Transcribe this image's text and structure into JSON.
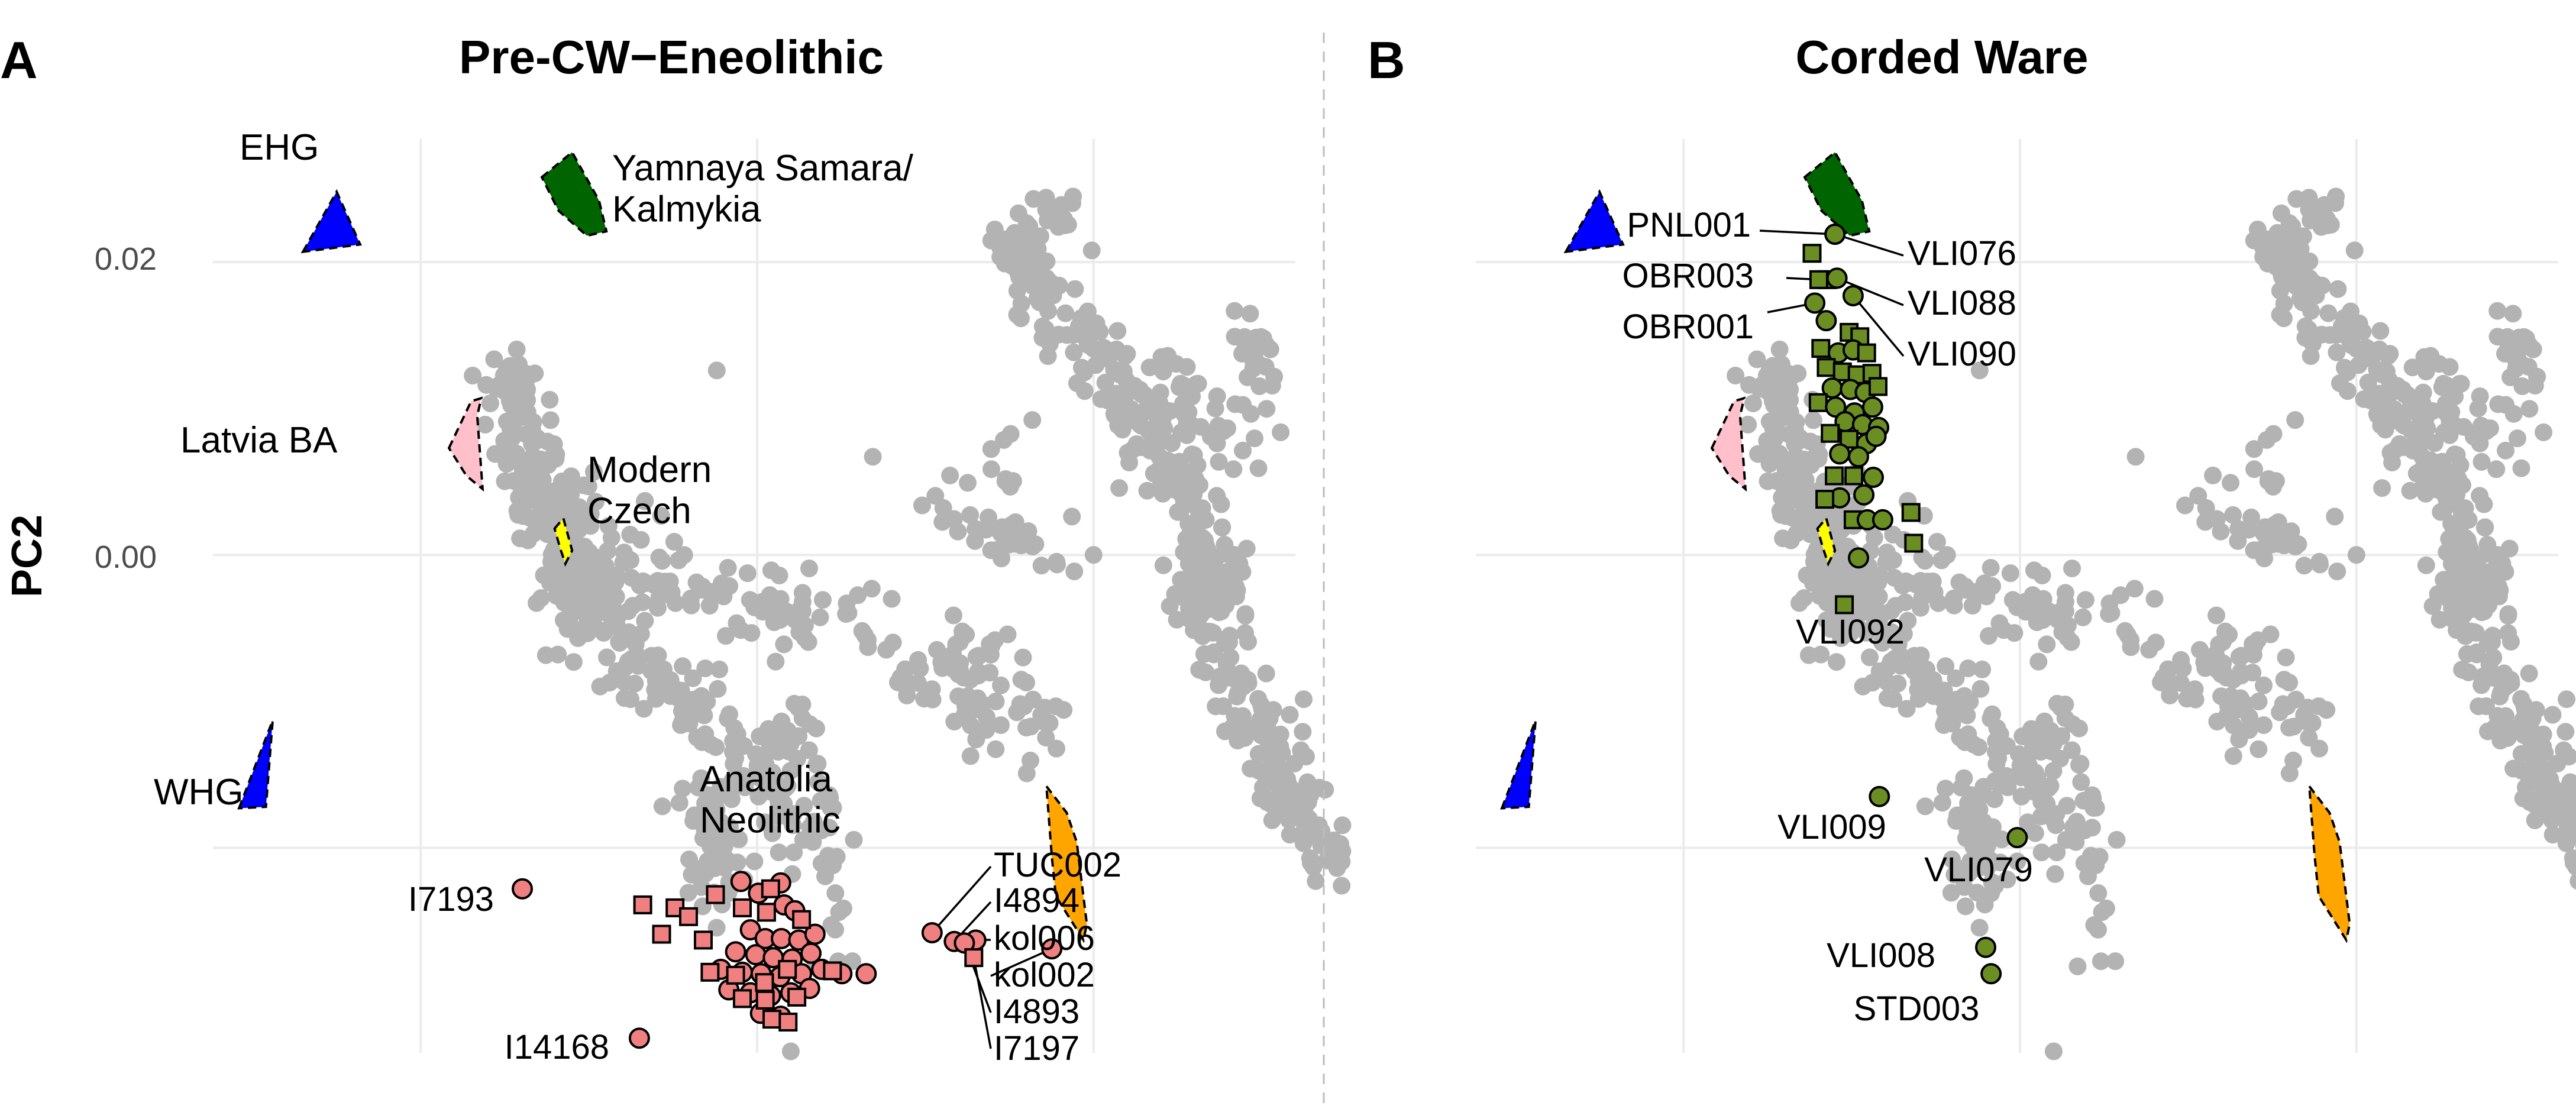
{
  "figure": {
    "ylabel": "PC2",
    "y_ticks": [
      0.02,
      0.0
    ],
    "y_tick_labels": [
      "0.02",
      "0.00"
    ]
  },
  "chart_data": [
    {
      "type": "scatter",
      "panel": "A",
      "title": "Pre-CW−Eneolithic",
      "xlabel": "",
      "ylabel": "PC2",
      "xlim": [
        -0.3,
        1.3
      ],
      "ylim": [
        -0.034,
        0.028
      ],
      "grid": true,
      "fill_colors": {
        "EHG": "#0000ff",
        "WHG": "#0000ff",
        "Yamnaya Samara/\nKalmykia": "#006400",
        "Latvia BA": "#ffc0cb",
        "Modern\nCzech": "#ffff00",
        "Anatolia\nNeolithic": "#ffa500"
      },
      "sample_color": "#f08080",
      "regions": [
        {
          "label": "EHG",
          "polygon": [
            [
              -0.175,
              0.0207
            ],
            [
              -0.125,
              0.0248
            ],
            [
              -0.09,
              0.0212
            ]
          ]
        },
        {
          "label": "WHG",
          "polygon": [
            [
              -0.27,
              -0.0173
            ],
            [
              -0.22,
              -0.0113
            ],
            [
              -0.23,
              -0.0172
            ]
          ]
        },
        {
          "label": "Yamnaya Samara/\nKalmykia",
          "polygon": [
            [
              0.18,
              0.0258
            ],
            [
              0.225,
              0.0275
            ],
            [
              0.265,
              0.0242
            ],
            [
              0.276,
              0.0221
            ],
            [
              0.247,
              0.0218
            ],
            [
              0.205,
              0.0235
            ]
          ]
        },
        {
          "label": "Latvia BA",
          "polygon": [
            [
              0.042,
              0.0073
            ],
            [
              0.075,
              0.0105
            ],
            [
              0.09,
              0.0107
            ],
            [
              0.084,
              0.0095
            ],
            [
              0.092,
              0.0045
            ],
            [
              0.068,
              0.0054
            ]
          ]
        },
        {
          "label": "Modern\nCzech",
          "polygon": [
            [
              0.199,
              0.0018
            ],
            [
              0.212,
              0.0025
            ],
            [
              0.225,
              0.0003
            ],
            [
              0.215,
              -0.0006
            ],
            [
              0.207,
              0.0005
            ]
          ]
        },
        {
          "label": "Anatolia\nNeolithic",
          "polygon": [
            [
              0.93,
              -0.0158
            ],
            [
              0.96,
              -0.0176
            ],
            [
              0.975,
              -0.0196
            ],
            [
              0.99,
              -0.0252
            ],
            [
              0.985,
              -0.0263
            ],
            [
              0.944,
              -0.0233
            ],
            [
              0.938,
              -0.0206
            ]
          ]
        }
      ],
      "region_labels": [
        "EHG",
        "WHG",
        "Yamnaya Samara/\nKalmykia",
        "Latvia BA",
        "Modern\nCzech",
        "Anatolia\nNeolithic"
      ],
      "labeled_samples": [
        {
          "label": "I7193",
          "x": 0.151,
          "y": -0.0228,
          "shape": "circle"
        },
        {
          "label": "I14168",
          "x": 0.325,
          "y": -0.033,
          "shape": "circle"
        },
        {
          "label": "TUC002",
          "x": 0.76,
          "y": -0.0258,
          "shape": "circle"
        },
        {
          "label": "I4894",
          "x": 0.793,
          "y": -0.0264,
          "shape": "circle"
        },
        {
          "label": "kol006",
          "x": 0.825,
          "y": -0.0263,
          "shape": "circle"
        },
        {
          "label": "kol002",
          "x": 0.938,
          "y": -0.0269,
          "shape": "circle"
        },
        {
          "label": "I4893",
          "x": 0.808,
          "y": -0.0265,
          "shape": "circle"
        },
        {
          "label": "I7197",
          "x": 0.822,
          "y": -0.0275,
          "shape": "square"
        }
      ],
      "cluster_samples": [
        {
          "x": 0.33,
          "y": -0.0239,
          "shape": "square"
        },
        {
          "x": 0.378,
          "y": -0.0241,
          "shape": "square"
        },
        {
          "x": 0.398,
          "y": -0.0247,
          "shape": "square"
        },
        {
          "x": 0.358,
          "y": -0.0259,
          "shape": "square"
        },
        {
          "x": 0.42,
          "y": -0.0263,
          "shape": "square"
        },
        {
          "x": 0.438,
          "y": -0.0232,
          "shape": "square"
        },
        {
          "x": 0.478,
          "y": -0.0241,
          "shape": "square"
        },
        {
          "x": 0.476,
          "y": -0.0223,
          "shape": "circle"
        },
        {
          "x": 0.535,
          "y": -0.0224,
          "shape": "circle"
        },
        {
          "x": 0.502,
          "y": -0.0231,
          "shape": "circle"
        },
        {
          "x": 0.54,
          "y": -0.0239,
          "shape": "circle"
        },
        {
          "x": 0.556,
          "y": -0.0243,
          "shape": "circle"
        },
        {
          "x": 0.49,
          "y": -0.0256,
          "shape": "circle"
        },
        {
          "x": 0.512,
          "y": -0.0262,
          "shape": "circle"
        },
        {
          "x": 0.536,
          "y": -0.0262,
          "shape": "circle"
        },
        {
          "x": 0.562,
          "y": -0.0263,
          "shape": "circle"
        },
        {
          "x": 0.586,
          "y": -0.0259,
          "shape": "circle"
        },
        {
          "x": 0.468,
          "y": -0.0271,
          "shape": "circle"
        },
        {
          "x": 0.498,
          "y": -0.0273,
          "shape": "circle"
        },
        {
          "x": 0.524,
          "y": -0.0275,
          "shape": "circle"
        },
        {
          "x": 0.552,
          "y": -0.0276,
          "shape": "circle"
        },
        {
          "x": 0.58,
          "y": -0.0272,
          "shape": "circle"
        },
        {
          "x": 0.446,
          "y": -0.0283,
          "shape": "circle"
        },
        {
          "x": 0.478,
          "y": -0.0285,
          "shape": "circle"
        },
        {
          "x": 0.506,
          "y": -0.0286,
          "shape": "circle"
        },
        {
          "x": 0.534,
          "y": -0.0288,
          "shape": "circle"
        },
        {
          "x": 0.566,
          "y": -0.0286,
          "shape": "circle"
        },
        {
          "x": 0.596,
          "y": -0.0283,
          "shape": "circle"
        },
        {
          "x": 0.458,
          "y": -0.0297,
          "shape": "circle"
        },
        {
          "x": 0.49,
          "y": -0.0299,
          "shape": "circle"
        },
        {
          "x": 0.52,
          "y": -0.0301,
          "shape": "circle"
        },
        {
          "x": 0.55,
          "y": -0.0299,
          "shape": "circle"
        },
        {
          "x": 0.578,
          "y": -0.0296,
          "shape": "circle"
        },
        {
          "x": 0.505,
          "y": -0.0313,
          "shape": "circle"
        },
        {
          "x": 0.535,
          "y": -0.0315,
          "shape": "circle"
        },
        {
          "x": 0.662,
          "y": -0.0286,
          "shape": "circle"
        },
        {
          "x": 0.626,
          "y": -0.0286,
          "shape": "circle"
        },
        {
          "x": 0.43,
          "y": -0.0285,
          "shape": "square"
        },
        {
          "x": 0.468,
          "y": -0.0287,
          "shape": "square"
        },
        {
          "x": 0.511,
          "y": -0.0292,
          "shape": "square"
        },
        {
          "x": 0.545,
          "y": -0.0283,
          "shape": "square"
        },
        {
          "x": 0.478,
          "y": -0.0303,
          "shape": "square"
        },
        {
          "x": 0.512,
          "y": -0.0304,
          "shape": "square"
        },
        {
          "x": 0.559,
          "y": -0.0302,
          "shape": "square"
        },
        {
          "x": 0.522,
          "y": -0.0317,
          "shape": "square"
        },
        {
          "x": 0.546,
          "y": -0.0319,
          "shape": "square"
        },
        {
          "x": 0.612,
          "y": -0.0284,
          "shape": "square"
        },
        {
          "x": 0.52,
          "y": -0.0228,
          "shape": "square"
        },
        {
          "x": 0.514,
          "y": -0.0244,
          "shape": "square"
        },
        {
          "x": 0.566,
          "y": -0.0249,
          "shape": "square"
        }
      ]
    },
    {
      "type": "scatter",
      "panel": "B",
      "title": "Corded Ware",
      "xlabel": "",
      "ylabel": "",
      "xlim": [
        -0.3,
        1.3
      ],
      "ylim": [
        -0.034,
        0.028
      ],
      "grid": true,
      "fill_colors": {
        "EHG": "#0000ff",
        "WHG": "#0000ff",
        "Yamnaya": "#006400",
        "Latvia BA": "#ffc0cb",
        "Modern Czech": "#ffff00",
        "Anatolia Neolithic": "#ffa500"
      },
      "sample_color": "#6b8e23",
      "regions": [
        {
          "label": "EHG",
          "polygon": [
            [
              -0.175,
              0.0207
            ],
            [
              -0.125,
              0.0248
            ],
            [
              -0.09,
              0.0212
            ]
          ]
        },
        {
          "label": "WHG",
          "polygon": [
            [
              -0.27,
              -0.0173
            ],
            [
              -0.22,
              -0.0113
            ],
            [
              -0.23,
              -0.0172
            ]
          ]
        },
        {
          "label": "Yamnaya",
          "polygon": [
            [
              0.18,
              0.0258
            ],
            [
              0.225,
              0.0275
            ],
            [
              0.265,
              0.0242
            ],
            [
              0.276,
              0.0221
            ],
            [
              0.247,
              0.0218
            ],
            [
              0.205,
              0.0235
            ]
          ]
        },
        {
          "label": "Latvia BA",
          "polygon": [
            [
              0.042,
              0.0073
            ],
            [
              0.075,
              0.0105
            ],
            [
              0.09,
              0.0107
            ],
            [
              0.084,
              0.0095
            ],
            [
              0.092,
              0.0045
            ],
            [
              0.068,
              0.0054
            ]
          ]
        },
        {
          "label": "Modern Czech",
          "polygon": [
            [
              0.199,
              0.0018
            ],
            [
              0.212,
              0.0025
            ],
            [
              0.225,
              0.0003
            ],
            [
              0.215,
              -0.0006
            ],
            [
              0.207,
              0.0005
            ]
          ]
        },
        {
          "label": "Anatolia Neolithic",
          "polygon": [
            [
              0.93,
              -0.0158
            ],
            [
              0.96,
              -0.0176
            ],
            [
              0.975,
              -0.0196
            ],
            [
              0.99,
              -0.0252
            ],
            [
              0.985,
              -0.0263
            ],
            [
              0.944,
              -0.0233
            ],
            [
              0.938,
              -0.0206
            ]
          ]
        }
      ],
      "labeled_samples": [
        {
          "label": "PNL001",
          "x": 0.225,
          "y": 0.0219,
          "shape": "circle"
        },
        {
          "label": "VLI076",
          "x": 0.225,
          "y": 0.0219,
          "shape": "circle"
        },
        {
          "label": "OBR003",
          "x": 0.201,
          "y": 0.0188,
          "shape": "square"
        },
        {
          "label": "VLI088",
          "x": 0.228,
          "y": 0.0189,
          "shape": "circle"
        },
        {
          "label": "OBR001",
          "x": 0.195,
          "y": 0.0172,
          "shape": "circle"
        },
        {
          "label": "VLI090",
          "x": 0.252,
          "y": 0.0177,
          "shape": "circle"
        },
        {
          "label": "VLI092",
          "x": 0.239,
          "y": -0.0034,
          "shape": "square"
        },
        {
          "label": "VLI009",
          "x": 0.291,
          "y": -0.0165,
          "shape": "circle"
        },
        {
          "label": "VLI079",
          "x": 0.496,
          "y": -0.0193,
          "shape": "circle"
        },
        {
          "label": "VLI008",
          "x": 0.449,
          "y": -0.0268,
          "shape": "circle"
        },
        {
          "label": "STD003",
          "x": 0.457,
          "y": -0.0286,
          "shape": "circle"
        }
      ],
      "cluster_samples": [
        {
          "x": 0.191,
          "y": 0.0206,
          "shape": "square"
        },
        {
          "x": 0.214,
          "y": 0.0188,
          "shape": "square"
        },
        {
          "x": 0.212,
          "y": 0.016,
          "shape": "circle"
        },
        {
          "x": 0.246,
          "y": 0.0152,
          "shape": "square"
        },
        {
          "x": 0.262,
          "y": 0.0149,
          "shape": "square"
        },
        {
          "x": 0.204,
          "y": 0.0141,
          "shape": "square"
        },
        {
          "x": 0.23,
          "y": 0.0138,
          "shape": "circle"
        },
        {
          "x": 0.252,
          "y": 0.014,
          "shape": "circle"
        },
        {
          "x": 0.272,
          "y": 0.0138,
          "shape": "square"
        },
        {
          "x": 0.212,
          "y": 0.0128,
          "shape": "square"
        },
        {
          "x": 0.236,
          "y": 0.0125,
          "shape": "square"
        },
        {
          "x": 0.258,
          "y": 0.0123,
          "shape": "square"
        },
        {
          "x": 0.28,
          "y": 0.0124,
          "shape": "square"
        },
        {
          "x": 0.221,
          "y": 0.0114,
          "shape": "circle"
        },
        {
          "x": 0.248,
          "y": 0.0113,
          "shape": "circle"
        },
        {
          "x": 0.27,
          "y": 0.0111,
          "shape": "circle"
        },
        {
          "x": 0.289,
          "y": 0.0115,
          "shape": "square"
        },
        {
          "x": 0.2,
          "y": 0.0104,
          "shape": "square"
        },
        {
          "x": 0.226,
          "y": 0.0101,
          "shape": "circle"
        },
        {
          "x": 0.254,
          "y": 0.0097,
          "shape": "circle"
        },
        {
          "x": 0.281,
          "y": 0.0101,
          "shape": "circle"
        },
        {
          "x": 0.24,
          "y": 0.0091,
          "shape": "circle"
        },
        {
          "x": 0.266,
          "y": 0.0089,
          "shape": "circle"
        },
        {
          "x": 0.29,
          "y": 0.0087,
          "shape": "circle"
        },
        {
          "x": 0.218,
          "y": 0.0083,
          "shape": "square"
        },
        {
          "x": 0.246,
          "y": 0.0079,
          "shape": "square"
        },
        {
          "x": 0.272,
          "y": 0.0076,
          "shape": "circle"
        },
        {
          "x": 0.286,
          "y": 0.0081,
          "shape": "circle"
        },
        {
          "x": 0.232,
          "y": 0.0069,
          "shape": "circle"
        },
        {
          "x": 0.26,
          "y": 0.0067,
          "shape": "circle"
        },
        {
          "x": 0.224,
          "y": 0.0054,
          "shape": "square"
        },
        {
          "x": 0.253,
          "y": 0.0054,
          "shape": "square"
        },
        {
          "x": 0.282,
          "y": 0.0053,
          "shape": "circle"
        },
        {
          "x": 0.268,
          "y": 0.0041,
          "shape": "circle"
        },
        {
          "x": 0.232,
          "y": 0.0039,
          "shape": "circle"
        },
        {
          "x": 0.21,
          "y": 0.0038,
          "shape": "square"
        },
        {
          "x": 0.252,
          "y": 0.0024,
          "shape": "square"
        },
        {
          "x": 0.273,
          "y": 0.0024,
          "shape": "circle"
        },
        {
          "x": 0.296,
          "y": 0.0024,
          "shape": "circle"
        },
        {
          "x": 0.338,
          "y": 0.0029,
          "shape": "square"
        },
        {
          "x": 0.342,
          "y": 0.0008,
          "shape": "square"
        },
        {
          "x": 0.26,
          "y": -0.0002,
          "shape": "circle"
        }
      ]
    }
  ]
}
